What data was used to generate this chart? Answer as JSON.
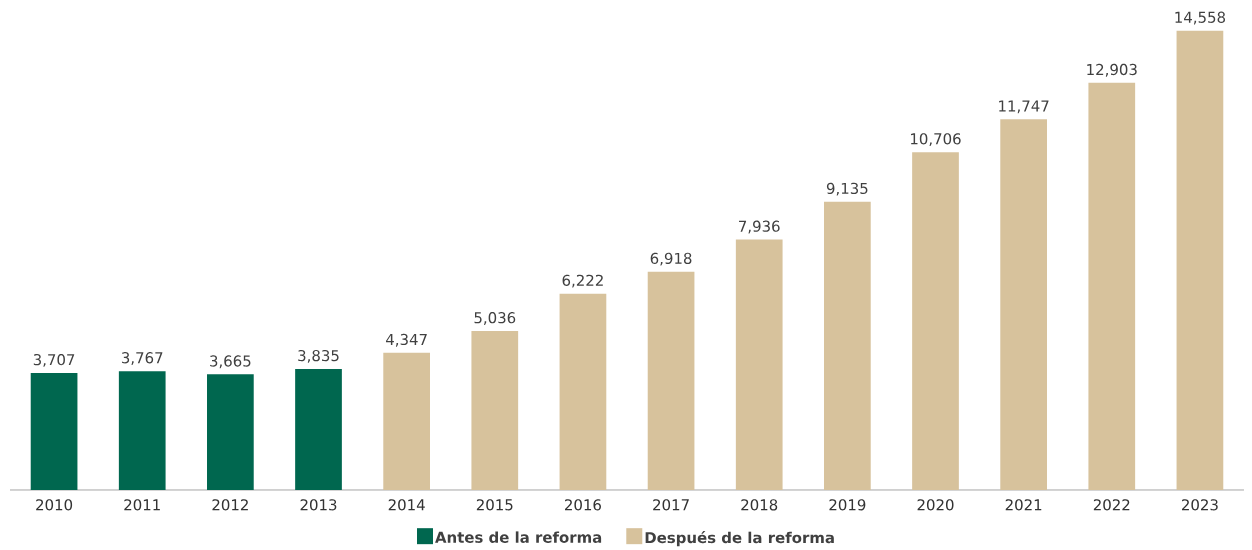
{
  "chart_data": {
    "type": "bar",
    "categories": [
      "2010",
      "2011",
      "2012",
      "2013",
      "2014",
      "2015",
      "2016",
      "2017",
      "2018",
      "2019",
      "2020",
      "2021",
      "2022",
      "2023"
    ],
    "series": [
      {
        "name": "Antes de la reforma",
        "color": "#00674f",
        "values": [
          3707,
          3767,
          3665,
          3835,
          null,
          null,
          null,
          null,
          null,
          null,
          null,
          null,
          null,
          null
        ],
        "value_labels": [
          "3,707",
          "3,767",
          "3,665",
          "3,835",
          null,
          null,
          null,
          null,
          null,
          null,
          null,
          null,
          null,
          null
        ]
      },
      {
        "name": "Después de la reforma",
        "color": "#d7c29c",
        "values": [
          null,
          null,
          null,
          null,
          4347,
          5036,
          6222,
          6918,
          7936,
          9135,
          10706,
          11747,
          12903,
          14558
        ],
        "value_labels": [
          null,
          null,
          null,
          null,
          "4,347",
          "5,036",
          "6,222",
          "6,918",
          "7,936",
          "9,135",
          "10,706",
          "11,747",
          "12,903",
          "14,558"
        ]
      }
    ],
    "tick_labels": "x",
    "legend": "bottom"
  }
}
